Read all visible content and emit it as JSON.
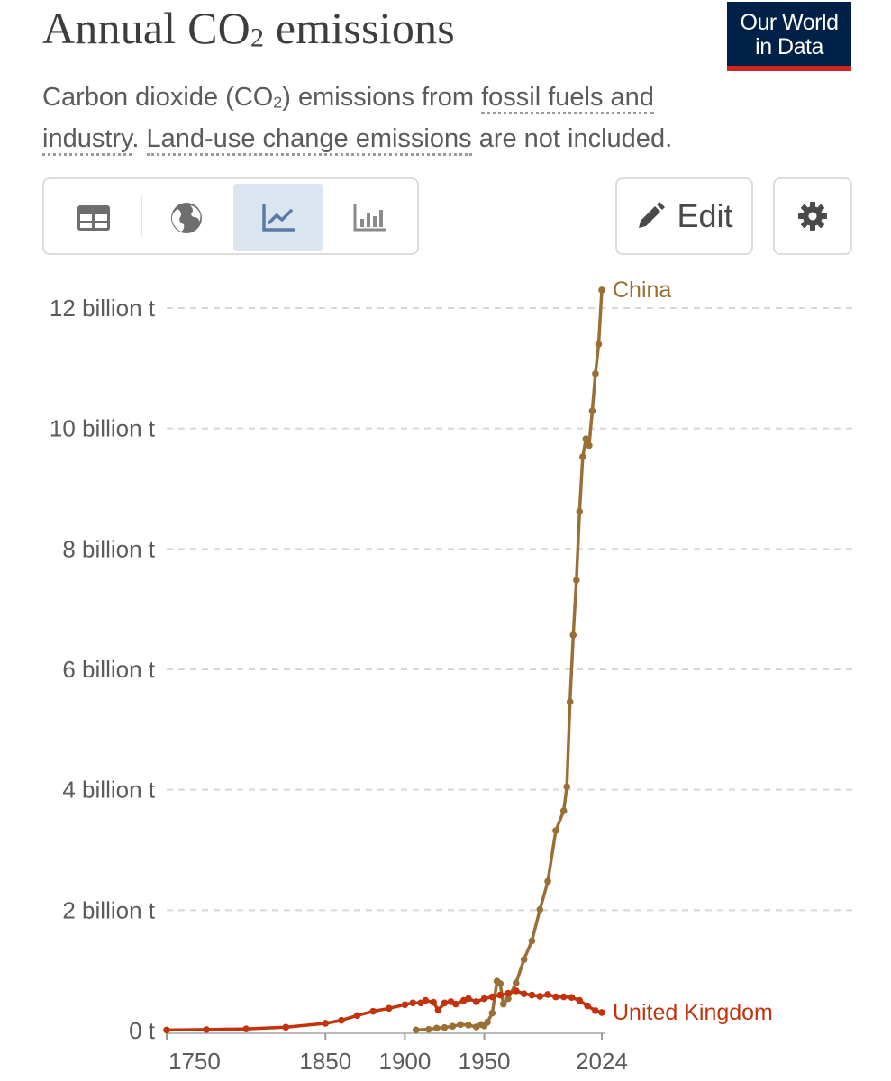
{
  "header": {
    "title_main": "Annual CO",
    "title_sub": "2",
    "title_rest": " emissions",
    "subtitle_a": "Carbon dioxide (CO",
    "subtitle_sub": "2",
    "subtitle_b": ") emissions from ",
    "subtitle_link1": "fossil fuels and industry",
    "subtitle_c": ". ",
    "subtitle_link2": "Land-use change emissions",
    "subtitle_d": " are not included."
  },
  "logo": {
    "line1": "Our World",
    "line2": "in Data"
  },
  "tabs": [
    {
      "icon": "table-icon",
      "active": false
    },
    {
      "icon": "globe-icon",
      "active": false
    },
    {
      "icon": "line-chart-icon",
      "active": true
    },
    {
      "icon": "bar-chart-icon",
      "active": false
    }
  ],
  "toolbar": {
    "edit_label": "Edit",
    "settings_icon": "gear-icon",
    "edit_icon": "pencil-icon"
  },
  "chart_data": {
    "type": "line",
    "title": "Annual CO2 emissions",
    "xlim": [
      1750,
      2024
    ],
    "ylim": [
      0,
      12500000000
    ],
    "yticks": [
      0,
      2000000000,
      4000000000,
      6000000000,
      8000000000,
      10000000000,
      12000000000
    ],
    "ytick_labels": [
      "0 t",
      "2 billion t",
      "4 billion t",
      "6 billion t",
      "8 billion t",
      "10 billion t",
      "12 billion t"
    ],
    "xticks": [
      1750,
      1850,
      1900,
      1950,
      2024
    ],
    "xtick_labels": [
      "1750",
      "1850",
      "1900",
      "1950",
      "2024"
    ],
    "grid": "horizontal-dashed",
    "legend": "end-of-line labels",
    "series": [
      {
        "name": "China",
        "color": "#9a6f35",
        "x": [
          1907,
          1915,
          1920,
          1925,
          1930,
          1935,
          1940,
          1945,
          1948,
          1950,
          1952,
          1955,
          1958,
          1960,
          1962,
          1965,
          1970,
          1975,
          1980,
          1985,
          1990,
          1995,
          2000,
          2002,
          2004,
          2006,
          2008,
          2010,
          2012,
          2014,
          2016,
          2018,
          2020,
          2022,
          2024
        ],
        "y": [
          10000000,
          20000000,
          40000000,
          50000000,
          70000000,
          100000000,
          90000000,
          60000000,
          100000000,
          78000000,
          140000000,
          290000000,
          820000000,
          780000000,
          440000000,
          530000000,
          790000000,
          1180000000,
          1490000000,
          2010000000,
          2480000000,
          3320000000,
          3650000000,
          4050000000,
          5460000000,
          6570000000,
          7480000000,
          8620000000,
          9530000000,
          9830000000,
          9720000000,
          10290000000,
          10910000000,
          11400000000,
          12300000000
        ]
      },
      {
        "name": "United Kingdom",
        "color": "#c1330c",
        "x": [
          1750,
          1775,
          1800,
          1825,
          1850,
          1860,
          1870,
          1880,
          1890,
          1900,
          1905,
          1910,
          1913,
          1918,
          1921,
          1925,
          1929,
          1932,
          1937,
          1940,
          1945,
          1950,
          1955,
          1960,
          1965,
          1970,
          1975,
          1980,
          1985,
          1990,
          1995,
          2000,
          2005,
          2010,
          2015,
          2020,
          2024
        ],
        "y": [
          9000000,
          16000000,
          28000000,
          55000000,
          120000000,
          170000000,
          250000000,
          320000000,
          370000000,
          430000000,
          460000000,
          460000000,
          500000000,
          470000000,
          340000000,
          460000000,
          480000000,
          440000000,
          500000000,
          530000000,
          480000000,
          530000000,
          560000000,
          590000000,
          620000000,
          660000000,
          610000000,
          590000000,
          570000000,
          600000000,
          560000000,
          560000000,
          550000000,
          500000000,
          410000000,
          330000000,
          300000000
        ]
      }
    ]
  }
}
